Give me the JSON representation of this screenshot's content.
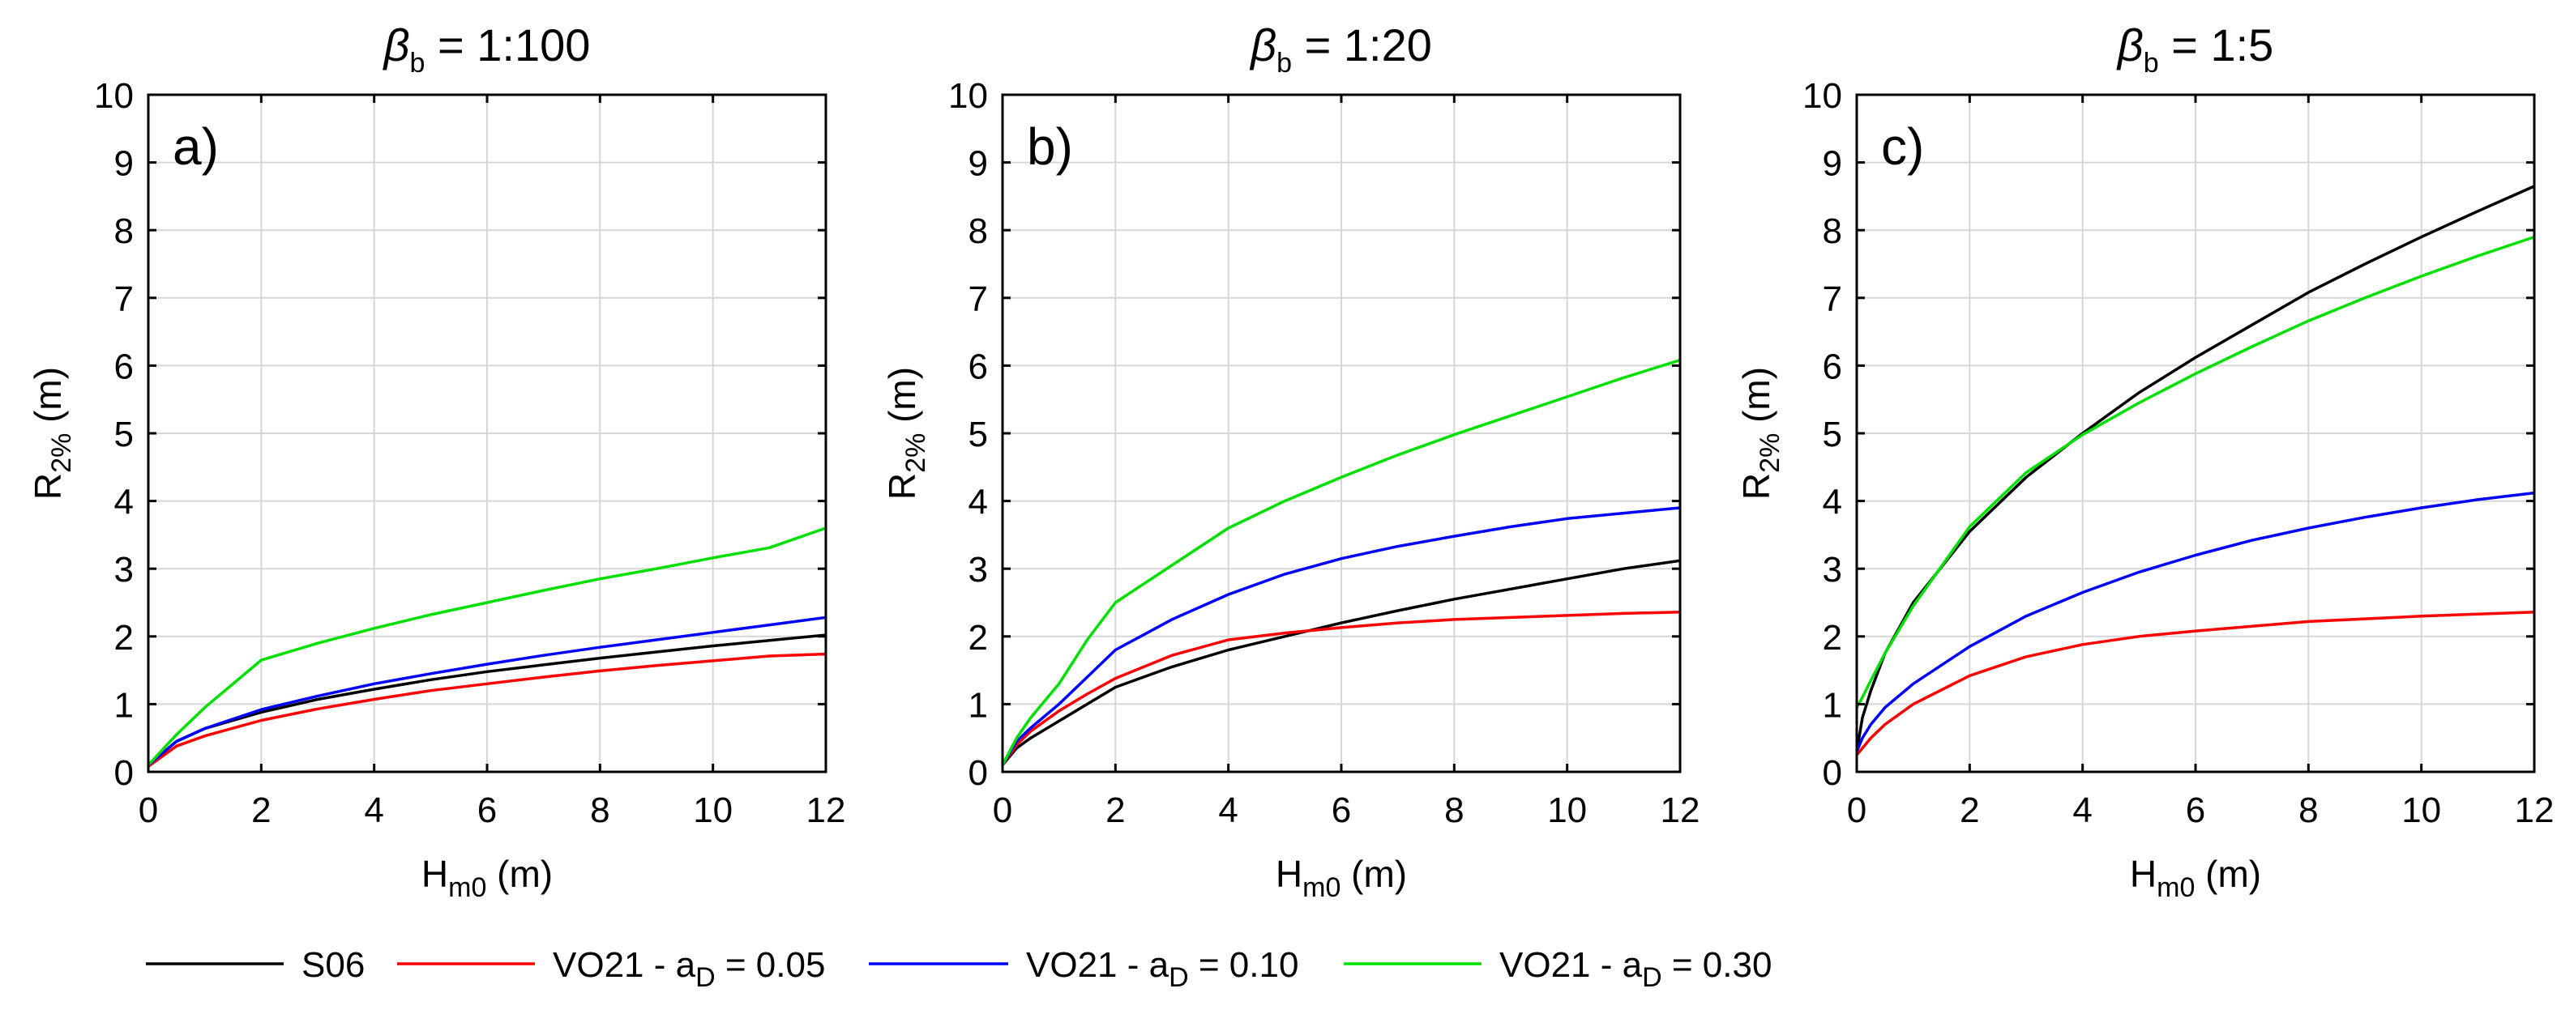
{
  "colors": {
    "S06": "#000000",
    "VO21_005": "#ff0000",
    "VO21_010": "#0000ff",
    "VO21_030": "#00e000"
  },
  "legend": [
    {
      "main": "S06",
      "sub": "",
      "tail": "",
      "color_key": "S06"
    },
    {
      "main": "VO21 - a",
      "sub": "D",
      "tail": " = 0.05",
      "color_key": "VO21_005"
    },
    {
      "main": "VO21 - a",
      "sub": "D",
      "tail": " = 0.10",
      "color_key": "VO21_010"
    },
    {
      "main": "VO21 - a",
      "sub": "D",
      "tail": " = 0.30",
      "color_key": "VO21_030"
    }
  ],
  "chart_data": [
    {
      "type": "line",
      "panel_label": "a)",
      "title": {
        "symbol": "β",
        "sub": "b",
        "text": " = 1:100"
      },
      "xlabel": {
        "main": "H",
        "sub": "m0",
        "tail": " (m)"
      },
      "ylabel": {
        "main": "R",
        "sub": "2%",
        "tail": " (m)"
      },
      "xlim": [
        0,
        12
      ],
      "ylim": [
        0,
        10
      ],
      "xticks": [
        "0",
        "2",
        "4",
        "6",
        "8",
        "10",
        "12"
      ],
      "yticks": [
        "0",
        "1",
        "2",
        "3",
        "4",
        "5",
        "6",
        "7",
        "8",
        "9",
        "10"
      ],
      "grid": true,
      "x": [
        0,
        0.5,
        1,
        2,
        3,
        4,
        5,
        6,
        7,
        8,
        9,
        10,
        11,
        12
      ],
      "series": [
        {
          "name": "S06",
          "color_key": "S06",
          "values": [
            0.1,
            0.45,
            0.64,
            0.88,
            1.07,
            1.22,
            1.36,
            1.48,
            1.58,
            1.68,
            1.77,
            1.86,
            1.94,
            2.02
          ]
        },
        {
          "name": "VO21 - aD = 0.05",
          "color_key": "VO21_005",
          "values": [
            0.08,
            0.38,
            0.53,
            0.76,
            0.93,
            1.07,
            1.2,
            1.3,
            1.4,
            1.49,
            1.57,
            1.64,
            1.71,
            1.74
          ]
        },
        {
          "name": "VO21 - aD = 0.10",
          "color_key": "VO21_010",
          "values": [
            0.1,
            0.45,
            0.64,
            0.92,
            1.12,
            1.3,
            1.45,
            1.59,
            1.72,
            1.84,
            1.95,
            2.06,
            2.17,
            2.28
          ]
        },
        {
          "name": "VO21 - aD = 0.30",
          "color_key": "VO21_030",
          "values": [
            0.1,
            0.55,
            0.95,
            1.65,
            1.9,
            2.12,
            2.32,
            2.5,
            2.68,
            2.85,
            3.0,
            3.16,
            3.31,
            3.6
          ]
        }
      ]
    },
    {
      "type": "line",
      "panel_label": "b)",
      "title": {
        "symbol": "β",
        "sub": "b",
        "text": " = 1:20"
      },
      "xlabel": {
        "main": "H",
        "sub": "m0",
        "tail": " (m)"
      },
      "ylabel": {
        "main": "R",
        "sub": "2%",
        "tail": " (m)"
      },
      "xlim": [
        0,
        12
      ],
      "ylim": [
        0,
        10
      ],
      "xticks": [
        "0",
        "2",
        "4",
        "6",
        "8",
        "10",
        "12"
      ],
      "yticks": [
        "0",
        "1",
        "2",
        "3",
        "4",
        "5",
        "6",
        "7",
        "8",
        "9",
        "10"
      ],
      "grid": true,
      "x": [
        0,
        0.25,
        0.5,
        1,
        1.5,
        2,
        3,
        4,
        5,
        6,
        7,
        8,
        9,
        10,
        11,
        12
      ],
      "series": [
        {
          "name": "S06",
          "color_key": "S06",
          "values": [
            0.1,
            0.35,
            0.5,
            0.75,
            1.0,
            1.25,
            1.55,
            1.8,
            2.0,
            2.2,
            2.38,
            2.55,
            2.7,
            2.85,
            3.0,
            3.12
          ]
        },
        {
          "name": "VO21 - aD = 0.05",
          "color_key": "VO21_005",
          "values": [
            0.1,
            0.4,
            0.6,
            0.9,
            1.15,
            1.38,
            1.72,
            1.95,
            2.05,
            2.13,
            2.2,
            2.25,
            2.28,
            2.31,
            2.34,
            2.36
          ]
        },
        {
          "name": "VO21 - aD = 0.10",
          "color_key": "VO21_010",
          "values": [
            0.1,
            0.45,
            0.65,
            1.0,
            1.4,
            1.8,
            2.25,
            2.62,
            2.92,
            3.15,
            3.33,
            3.48,
            3.62,
            3.74,
            3.82,
            3.9
          ]
        },
        {
          "name": "VO21 - aD = 0.30",
          "color_key": "VO21_030",
          "values": [
            0.1,
            0.5,
            0.8,
            1.3,
            1.95,
            2.5,
            3.05,
            3.6,
            4.0,
            4.35,
            4.68,
            4.98,
            5.26,
            5.54,
            5.82,
            6.08
          ]
        }
      ]
    },
    {
      "type": "line",
      "panel_label": "c)",
      "title": {
        "symbol": "β",
        "sub": "b",
        "text": " = 1:5"
      },
      "xlabel": {
        "main": "H",
        "sub": "m0",
        "tail": " (m)"
      },
      "ylabel": {
        "main": "R",
        "sub": "2%",
        "tail": " (m)"
      },
      "xlim": [
        0,
        12
      ],
      "ylim": [
        0,
        10
      ],
      "xticks": [
        "0",
        "2",
        "4",
        "6",
        "8",
        "10",
        "12"
      ],
      "yticks": [
        "0",
        "1",
        "2",
        "3",
        "4",
        "5",
        "6",
        "7",
        "8",
        "9",
        "10"
      ],
      "grid": true,
      "x": [
        0,
        0.1,
        0.25,
        0.5,
        1,
        2,
        3,
        4,
        5,
        6,
        7,
        8,
        9,
        10,
        11,
        12
      ],
      "series": [
        {
          "name": "S06",
          "color_key": "S06",
          "values": [
            0.3,
            0.8,
            1.2,
            1.75,
            2.5,
            3.55,
            4.35,
            5.0,
            5.6,
            6.12,
            6.6,
            7.08,
            7.5,
            7.9,
            8.28,
            8.65
          ]
        },
        {
          "name": "VO21 - aD = 0.05",
          "color_key": "VO21_005",
          "values": [
            0.25,
            0.35,
            0.5,
            0.7,
            1.0,
            1.42,
            1.7,
            1.88,
            2.0,
            2.08,
            2.15,
            2.22,
            2.26,
            2.3,
            2.33,
            2.36
          ]
        },
        {
          "name": "VO21 - aD = 0.10",
          "color_key": "VO21_010",
          "values": [
            0.3,
            0.5,
            0.7,
            0.95,
            1.3,
            1.85,
            2.3,
            2.65,
            2.95,
            3.2,
            3.42,
            3.6,
            3.76,
            3.9,
            4.02,
            4.12
          ]
        },
        {
          "name": "VO21 - aD = 0.30",
          "color_key": "VO21_030",
          "values": [
            0.95,
            1.1,
            1.35,
            1.75,
            2.45,
            3.62,
            4.42,
            4.98,
            5.45,
            5.88,
            6.28,
            6.66,
            7.0,
            7.32,
            7.62,
            7.9
          ]
        }
      ]
    }
  ]
}
